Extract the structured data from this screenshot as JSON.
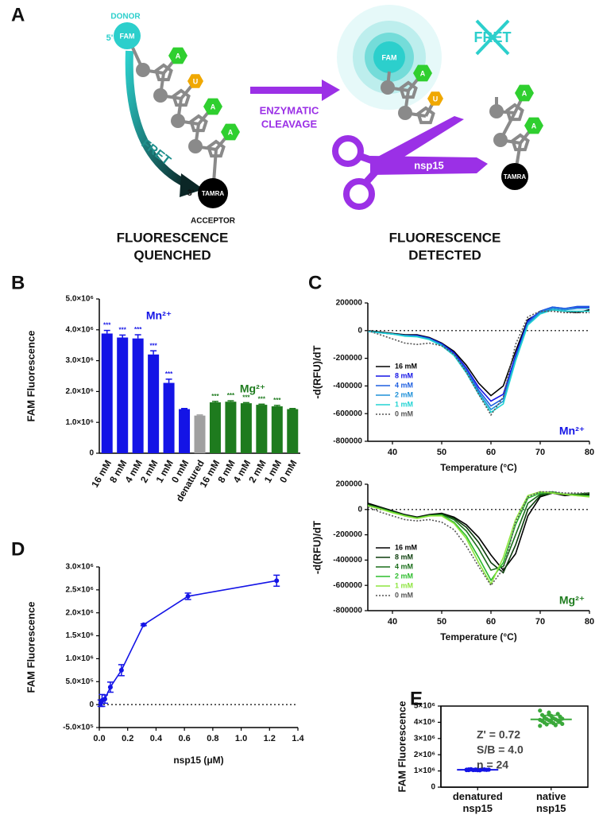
{
  "panel_a": {
    "label": "A",
    "donor": "DONOR",
    "five_prime": "5'",
    "fam": "FAM",
    "bases": [
      "A",
      "U",
      "A",
      "A"
    ],
    "fret": "FRET",
    "three_prime": "3'",
    "tamra": "TAMRA",
    "acceptor": "ACCEPTOR",
    "cleavage": [
      "ENZYMATIC",
      "CLEAVAGE"
    ],
    "product_fam": "FAM",
    "product_bases": [
      "A",
      "U"
    ],
    "fret_blocked": "FRET",
    "enzyme": "nsp15",
    "fragment_bases": [
      "A",
      "A"
    ],
    "fragment_tamra": "TAMRA",
    "captions": [
      [
        "FLUORESCENCE",
        "QUENCHED"
      ],
      [
        "FLUORESCENCE",
        "DETECTED"
      ]
    ]
  },
  "chart_data": [
    {
      "panel": "B",
      "type": "bar",
      "ylabel": "FAM Fluorescence",
      "categories": [
        "16 mM",
        "8 mM",
        "4 mM",
        "2 mM",
        "1 mM",
        "0 mM",
        "denatured",
        "16 mM",
        "8 mM",
        "4 mM",
        "2 mM",
        "1 mM",
        "0 mM"
      ],
      "values": [
        3880000,
        3750000,
        3720000,
        3200000,
        2280000,
        1430000,
        1220000,
        1650000,
        1670000,
        1620000,
        1570000,
        1520000,
        1430000
      ],
      "errors": [
        100000,
        80000,
        120000,
        120000,
        120000,
        20000,
        20000,
        30000,
        30000,
        20000,
        20000,
        30000,
        20000
      ],
      "colors": [
        "#1414e6",
        "#1414e6",
        "#1414e6",
        "#1414e6",
        "#1414e6",
        "#1414e6",
        "#a0a0a0",
        "#1e7b1e",
        "#1e7b1e",
        "#1e7b1e",
        "#1e7b1e",
        "#1e7b1e",
        "#1e7b1e"
      ],
      "significance": [
        "***",
        "***",
        "***",
        "***",
        "***",
        null,
        null,
        "***",
        "***",
        "***",
        "***",
        "***",
        null
      ],
      "annotations": [
        {
          "text": "Mn²⁺",
          "color": "#1414e6"
        },
        {
          "text": "Mg²⁺",
          "color": "#1e7b1e"
        }
      ],
      "ylim": [
        0,
        5000000
      ],
      "yticks": [
        0,
        {
          "value": 1000000,
          "label": "1.0×10⁶"
        },
        {
          "value": 2000000,
          "label": "2.0×10⁶"
        },
        {
          "value": 3000000,
          "label": "3.0×10⁶"
        },
        {
          "value": 4000000,
          "label": "4.0×10⁶"
        },
        {
          "value": 5000000,
          "label": "5.0×10⁶"
        }
      ]
    },
    {
      "panel": "C",
      "type": "line",
      "xlabel": "Temperature (°C)",
      "ylabel": "-d(RFU)/dT",
      "x": [
        35,
        37.5,
        40,
        42.5,
        45,
        47.5,
        50,
        52.5,
        55,
        57.5,
        60,
        62.5,
        65,
        67.5,
        70,
        72.5,
        75,
        77.5,
        80
      ],
      "series": [
        {
          "name": "16 mM",
          "color": "#000000",
          "values": [
            0,
            -10000,
            -20000,
            -30000,
            -30000,
            -50000,
            -90000,
            -150000,
            -250000,
            -380000,
            -470000,
            -400000,
            -150000,
            80000,
            130000,
            150000,
            140000,
            130000,
            150000
          ]
        },
        {
          "name": "8 mM",
          "color": "#1414e6",
          "values": [
            -5000,
            -15000,
            -25000,
            -35000,
            -35000,
            -55000,
            -95000,
            -160000,
            -270000,
            -410000,
            -510000,
            -460000,
            -180000,
            70000,
            140000,
            170000,
            160000,
            170000,
            170000
          ]
        },
        {
          "name": "4 mM",
          "color": "#1e5fe0",
          "values": [
            -5000,
            -15000,
            -25000,
            -35000,
            -40000,
            -60000,
            -100000,
            -170000,
            -285000,
            -430000,
            -545000,
            -490000,
            -200000,
            60000,
            140000,
            170000,
            160000,
            175000,
            175000
          ]
        },
        {
          "name": "2 mM",
          "color": "#1e90d8",
          "values": [
            -5000,
            -15000,
            -25000,
            -35000,
            -40000,
            -60000,
            -105000,
            -175000,
            -295000,
            -445000,
            -570000,
            -510000,
            -210000,
            50000,
            130000,
            160000,
            150000,
            160000,
            160000
          ]
        },
        {
          "name": "1 mM",
          "color": "#22d3d3",
          "values": [
            -5000,
            -15000,
            -25000,
            -40000,
            -45000,
            -65000,
            -110000,
            -180000,
            -305000,
            -460000,
            -590000,
            -530000,
            -220000,
            40000,
            120000,
            150000,
            140000,
            140000,
            140000
          ]
        },
        {
          "name": "0 mM",
          "color": "#555555",
          "style": "dotted",
          "values": [
            0,
            -30000,
            -60000,
            -90000,
            -100000,
            -90000,
            -110000,
            -170000,
            -300000,
            -460000,
            -610000,
            -480000,
            -100000,
            100000,
            140000,
            140000,
            130000,
            130000,
            130000
          ]
        }
      ],
      "annotation": {
        "text": "Mn²⁺",
        "color": "#1414e6"
      },
      "reference_line": 0,
      "legend": "lower left",
      "xlim": [
        35,
        80
      ],
      "xticks": [
        40,
        50,
        60,
        70,
        80
      ],
      "ylim": [
        -800000,
        200000
      ],
      "yticks": [
        -800000,
        -600000,
        -400000,
        -200000,
        0,
        200000
      ]
    },
    {
      "type": "line",
      "xlabel": "Temperature (°C)",
      "ylabel": "-d(RFU)/dT",
      "x": [
        35,
        37.5,
        40,
        42.5,
        45,
        47.5,
        50,
        52.5,
        55,
        57.5,
        60,
        62.5,
        65,
        67.5,
        70,
        72.5,
        75,
        77.5,
        80
      ],
      "series": [
        {
          "name": "16 mM",
          "color": "#000000",
          "values": [
            50000,
            20000,
            -10000,
            -40000,
            -60000,
            -40000,
            -30000,
            -60000,
            -120000,
            -220000,
            -360000,
            -480000,
            -350000,
            -50000,
            100000,
            130000,
            110000,
            120000,
            120000
          ]
        },
        {
          "name": "8 mM",
          "color": "#0b3d0b",
          "values": [
            40000,
            15000,
            -15000,
            -45000,
            -65000,
            -45000,
            -35000,
            -70000,
            -140000,
            -260000,
            -420000,
            -500000,
            -280000,
            0,
            110000,
            130000,
            120000,
            120000,
            130000
          ]
        },
        {
          "name": "4 mM",
          "color": "#1a6e1a",
          "values": [
            35000,
            10000,
            -20000,
            -45000,
            -65000,
            -45000,
            -40000,
            -80000,
            -170000,
            -310000,
            -480000,
            -450000,
            -200000,
            50000,
            120000,
            130000,
            120000,
            120000,
            130000
          ]
        },
        {
          "name": "2 mM",
          "color": "#2dbd2d",
          "values": [
            30000,
            5000,
            -20000,
            -50000,
            -70000,
            -50000,
            -45000,
            -100000,
            -210000,
            -380000,
            -560000,
            -420000,
            -120000,
            90000,
            130000,
            140000,
            120000,
            110000,
            110000
          ]
        },
        {
          "name": "1 mM",
          "color": "#8ee53f",
          "values": [
            30000,
            5000,
            -25000,
            -50000,
            -70000,
            -50000,
            -50000,
            -110000,
            -230000,
            -420000,
            -590000,
            -380000,
            -80000,
            110000,
            140000,
            130000,
            120000,
            110000,
            100000
          ]
        },
        {
          "name": "0 mM",
          "color": "#555555",
          "style": "dotted",
          "values": [
            20000,
            -20000,
            -50000,
            -80000,
            -90000,
            -80000,
            -100000,
            -160000,
            -290000,
            -450000,
            -600000,
            -470000,
            -100000,
            100000,
            140000,
            140000,
            130000,
            130000,
            130000
          ]
        }
      ],
      "annotation": {
        "text": "Mg²⁺",
        "color": "#1e7b1e"
      },
      "reference_line": 0,
      "legend": "lower left",
      "xlim": [
        35,
        80
      ],
      "xticks": [
        40,
        50,
        60,
        70,
        80
      ],
      "ylim": [
        -800000,
        200000
      ],
      "yticks": [
        -800000,
        -600000,
        -400000,
        -200000,
        0,
        200000
      ]
    },
    {
      "panel": "D",
      "type": "line",
      "xlabel": "nsp15 (μM)",
      "ylabel": "FAM Fluorescence",
      "color": "#1414e6",
      "x": [
        0.0098,
        0.0195,
        0.039,
        0.078,
        0.156,
        0.3125,
        0.625,
        1.25
      ],
      "values": [
        30000,
        90000,
        120000,
        380000,
        750000,
        1740000,
        2360000,
        2700000
      ],
      "errors": [
        70000,
        130000,
        90000,
        110000,
        120000,
        20000,
        70000,
        120000
      ],
      "reference_line": 0,
      "xlim": [
        0,
        1.4
      ],
      "xticks": [
        {
          "value": 0,
          "label": "0.0"
        },
        0.2,
        0.4,
        0.6,
        0.8,
        {
          "value": 1,
          "label": "1.0"
        },
        1.2,
        1.4
      ],
      "ylim": [
        -500000,
        3000000
      ],
      "yticks": [
        {
          "value": -500000,
          "label": "-5.0×10⁵"
        },
        0,
        {
          "value": 500000,
          "label": "5.0×10⁵"
        },
        {
          "value": 1000000,
          "label": "1.0×10⁶"
        },
        {
          "value": 1500000,
          "label": "1.5×10⁶"
        },
        {
          "value": 2000000,
          "label": "2.0×10⁶"
        },
        {
          "value": 2500000,
          "label": "2.5×10⁶"
        },
        {
          "value": 3000000,
          "label": "3.0×10⁶"
        }
      ]
    },
    {
      "panel": "E",
      "type": "strip",
      "ylabel": "FAM Fluorescence",
      "categories": [
        "denatured nsp15",
        "native nsp15"
      ],
      "series": [
        {
          "color": "#1414e6",
          "mean": 1075000,
          "sd": 20000,
          "values": [
            1080000,
            1060000,
            1100000,
            1050000,
            1090000,
            1070000,
            1110000,
            1040000,
            1080000,
            1065000,
            1095000,
            1055000,
            1085000,
            1075000,
            1100000,
            1045000,
            1070000,
            1090000,
            1060000,
            1080000,
            1050000,
            1095000,
            1075000,
            1085000
          ]
        },
        {
          "color": "#3aa83a",
          "mean": 4180000,
          "sd": 250000,
          "values": [
            4720000,
            4600000,
            4520000,
            4450000,
            4400000,
            4350000,
            4300000,
            4250000,
            4220000,
            4200000,
            4180000,
            4150000,
            4120000,
            4100000,
            4080000,
            4050000,
            4020000,
            3980000,
            3950000,
            3900000,
            3870000,
            3820000,
            3780000,
            4480000
          ]
        }
      ],
      "annotations": [
        "Z' = 0.72",
        "S/B = 4.0",
        "n = 24"
      ],
      "ylim": [
        0,
        5000000
      ],
      "yticks": [
        0,
        {
          "value": 1000000,
          "label": "1×10⁶"
        },
        {
          "value": 2000000,
          "label": "2×10⁶"
        },
        {
          "value": 3000000,
          "label": "3×10⁶"
        },
        {
          "value": 4000000,
          "label": "4×10⁶"
        },
        {
          "value": 5000000,
          "label": "5×10⁶"
        }
      ]
    }
  ]
}
